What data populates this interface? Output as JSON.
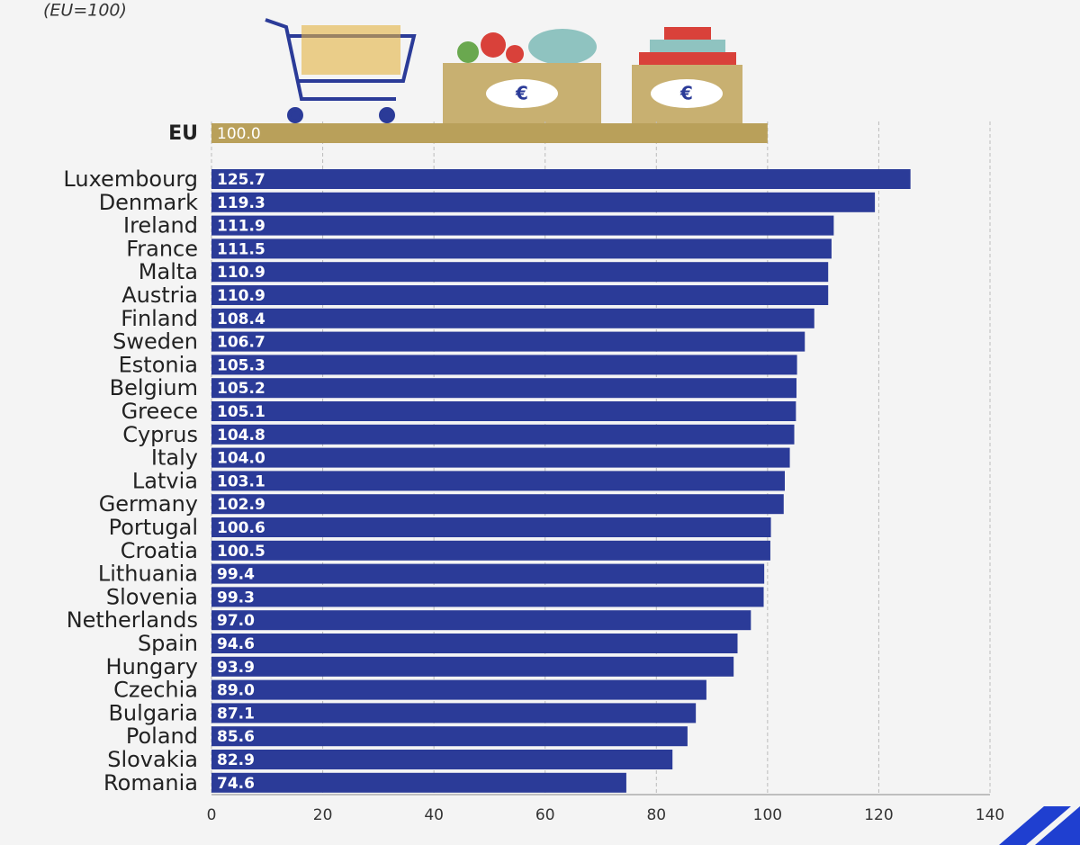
{
  "chart_data": {
    "type": "hbar",
    "subtitle": "(EU=100)",
    "categories": [
      "EU",
      "Luxembourg",
      "Denmark",
      "Ireland",
      "France",
      "Malta",
      "Austria",
      "Finland",
      "Sweden",
      "Estonia",
      "Belgium",
      "Greece",
      "Cyprus",
      "Italy",
      "Latvia",
      "Germany",
      "Portugal",
      "Croatia",
      "Lithuania",
      "Slovenia",
      "Netherlands",
      "Spain",
      "Hungary",
      "Czechia",
      "Bulgaria",
      "Poland",
      "Slovakia",
      "Romania"
    ],
    "values": [
      100,
      125.7,
      119.3,
      111.9,
      111.5,
      110.9,
      110.9,
      108.4,
      106.7,
      105.3,
      105.2,
      105.1,
      104.8,
      104,
      103.1,
      102.9,
      100.6,
      100.5,
      99.4,
      99.3,
      97,
      94.6,
      93.9,
      89,
      87.1,
      85.6,
      82.9,
      74.6
    ],
    "value_labels": [
      "100.0",
      "125.7",
      "119.3",
      "111.9",
      "111.5",
      "110.9",
      "110.9",
      "108.4",
      "106.7",
      "105.3",
      "105.2",
      "105.1",
      "104.8",
      "104.0",
      "103.1",
      "102.9",
      "100.6",
      "100.5",
      "99.4",
      "99.3",
      "97.0",
      "94.6",
      "93.9",
      "89.0",
      "87.1",
      "85.6",
      "82.9",
      "74.6"
    ],
    "bar_colors": [
      "#b9a05a",
      "#2b3b98",
      "#2b3b98",
      "#2b3b98",
      "#2b3b98",
      "#2b3b98",
      "#2b3b98",
      "#2b3b98",
      "#2b3b98",
      "#2b3b98",
      "#2b3b98",
      "#2b3b98",
      "#2b3b98",
      "#2b3b98",
      "#2b3b98",
      "#2b3b98",
      "#2b3b98",
      "#2b3b98",
      "#2b3b98",
      "#2b3b98",
      "#2b3b98",
      "#2b3b98",
      "#2b3b98",
      "#2b3b98",
      "#2b3b98",
      "#2b3b98",
      "#2b3b98",
      "#2b3b98"
    ],
    "xlim": [
      0,
      140
    ],
    "xticks": [
      0,
      20,
      40,
      60,
      80,
      100,
      120,
      140
    ],
    "grid": true
  }
}
